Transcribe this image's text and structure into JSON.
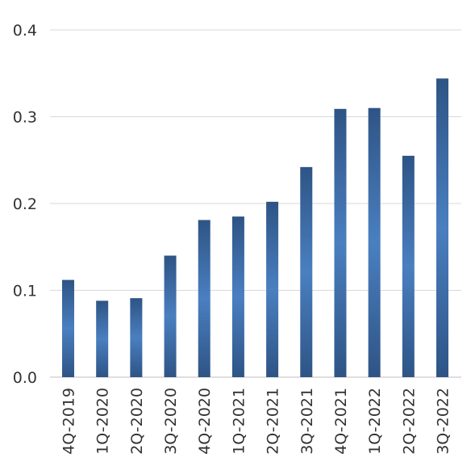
{
  "chart_data": {
    "type": "bar",
    "title": "",
    "xlabel": "",
    "ylabel": "",
    "categories": [
      "4Q-2019",
      "1Q-2020",
      "2Q-2020",
      "3Q-2020",
      "4Q-2020",
      "1Q-2021",
      "2Q-2021",
      "3Q-2021",
      "4Q-2021",
      "1Q-2022",
      "2Q-2022",
      "3Q-2022"
    ],
    "values": [
      0.112,
      0.088,
      0.091,
      0.14,
      0.181,
      0.185,
      0.202,
      0.242,
      0.309,
      0.31,
      0.255,
      0.344
    ],
    "ylim": [
      0,
      0.4
    ],
    "yticks": [
      "0.0",
      "0.1",
      "0.2",
      "0.3",
      "0.4"
    ],
    "grid": true,
    "legend": "none",
    "bar_color_dark": "#2e5485",
    "bar_color_light": "#4a7fc0"
  }
}
